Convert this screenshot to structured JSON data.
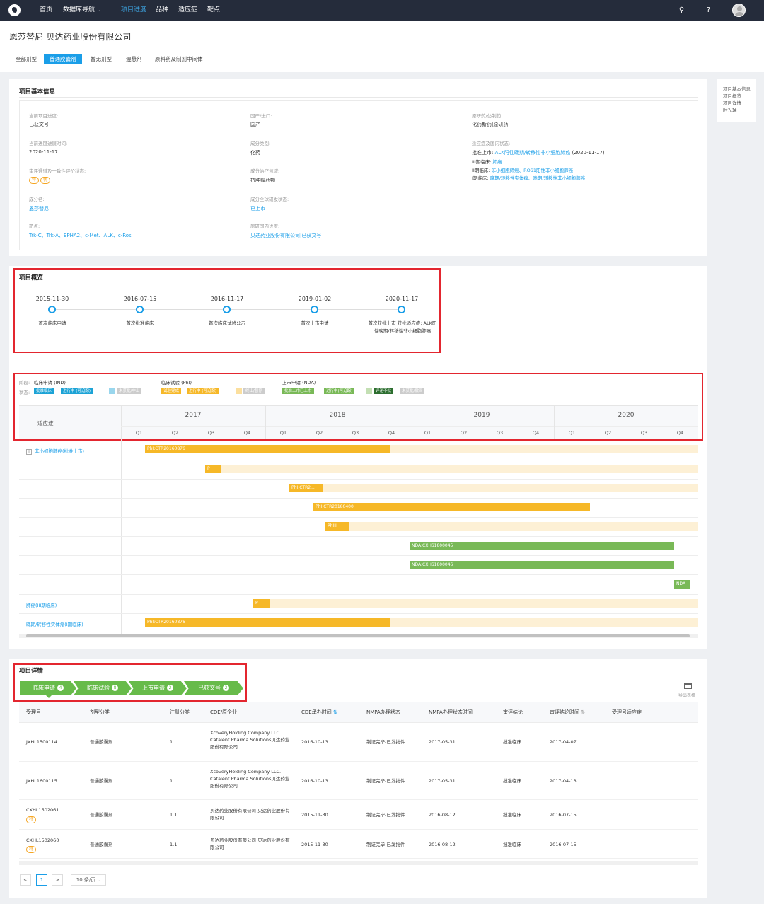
{
  "nav": {
    "items": [
      "首页",
      "数据库导航",
      "项目进度",
      "品种",
      "适应症",
      "靶点"
    ],
    "active": "项目进度"
  },
  "header": {
    "company": "恩莎替尼-贝达药业股份有限公司",
    "tabs": [
      "全部剂型",
      "普通胶囊剂",
      "暂无剂型",
      "混悬剂",
      "原料药及制剂中间体"
    ],
    "active_tab": "普通胶囊剂"
  },
  "sidebar": [
    "项目基本信息",
    "项目概览",
    "项目详情",
    "时光轴"
  ],
  "basic": {
    "title": "项目基本信息",
    "current_progress_label": "当前项目进度:",
    "current_progress": "已获文号",
    "latest_time_label": "当前进度进展时间:",
    "latest_time": "2020-11-17",
    "review_label": "审评通道及一致性评价状态:",
    "review_badges": [
      "特",
      "优"
    ],
    "component_label": "成分名:",
    "component": "恩莎替尼",
    "target_label": "靶点:",
    "targets": "Trk-C、Trk-A、EPHA2、c-Met、ALK、c-Ros",
    "origin_label": "国产/进口:",
    "origin": "国产",
    "category_label": "成分类别:",
    "category": "化药",
    "therapy_label": "成分治疗领域:",
    "therapy": "抗肿瘤药物",
    "global_label": "成分全球研发状态:",
    "global": "已上市",
    "domestic_label": "原研国内进度:",
    "domestic": "贝达药业股份有限公司|已获文号",
    "original_label": "原研药/仿制药:",
    "original": "化药新药|原研药",
    "indications_label": "适应症及国内状态:",
    "ind_line1_prefix": "批准上市:",
    "ind_line1_link": "ALK阳性晚期/转移性非小细胞肺癌",
    "ind_line1_suffix": "(2020-11-17)",
    "ind_line2_prefix": "III期临床:",
    "ind_line2_link": "肺癌",
    "ind_line3_prefix": "II期临床:",
    "ind_line3_link": "非小细胞肺癌、ROS1阳性非小细胞肺癌",
    "ind_line4_prefix": "I期临床:",
    "ind_line4_link": "晚期/转移性实体瘤、晚期/转移性非小细胞肺癌"
  },
  "overview": {
    "title": "项目概览",
    "milestones": [
      {
        "date": "2015-11-30",
        "label": "首次临床申请"
      },
      {
        "date": "2016-07-15",
        "label": "首次批准临床"
      },
      {
        "date": "2016-11-17",
        "label": "首次临床试验公示"
      },
      {
        "date": "2019-01-02",
        "label": "首次上市申请"
      },
      {
        "date": "2020-11-17",
        "label": "首次获批上市 获批适应症: ALK阳性晚期/转移性非小细胞肺癌"
      }
    ]
  },
  "legend": {
    "stage_label": "阶段:",
    "status_label": "状态:",
    "stages": [
      "临床申请 (IND)",
      "临床试验 (PhI)",
      "上市申请 (NDA)"
    ],
    "chips_ind": [
      "批准临床",
      "进行中 (可追踪)",
      "",
      "未获批/中止"
    ],
    "chips_ph": [
      "试验完成",
      "进行中 (可追踪)",
      "",
      "终止/暂停"
    ],
    "chips_nda": [
      "批准上市已上市",
      "进行中(可追踪)",
      "评论不批",
      "未获批/撤回"
    ],
    "colors": {
      "ind": "#1ca3d6",
      "ph": "#f6b828",
      "nda": "#79b957",
      "grey": "#cccccc",
      "dark": "#2c6e2f"
    }
  },
  "gantt": {
    "header_label": "适应症",
    "years": [
      "2017",
      "2018",
      "2019",
      "2020"
    ],
    "quarters": [
      "Q1",
      "Q2",
      "Q3",
      "Q4"
    ],
    "rows": [
      {
        "label": "非小细胞肺癌(批准上市)",
        "bar": "PhI:CTR20160876"
      },
      {
        "label": "",
        "bar": "P"
      },
      {
        "label": "",
        "bar": "PhI:CTR2..."
      },
      {
        "label": "",
        "bar": "PhI:CTR20180400"
      },
      {
        "label": "",
        "bar": "PhIII"
      },
      {
        "label": "",
        "bar": "NDA:CXHS1800045"
      },
      {
        "label": "",
        "bar": "NDA:CXHS1800046"
      },
      {
        "label": "",
        "bar": "NDA"
      },
      {
        "label": "肺癌(III期临床)",
        "bar": "P"
      },
      {
        "label": "晚期/转移性实体瘤(I期临床)",
        "bar": "PhI:CTR20160876"
      }
    ]
  },
  "details": {
    "title": "项目详情",
    "steps": [
      {
        "label": "临床申请",
        "count": "4"
      },
      {
        "label": "临床试验",
        "count": "8"
      },
      {
        "label": "上市申请",
        "count": "2"
      },
      {
        "label": "已获文号",
        "count": "2"
      }
    ],
    "export_label": "导出表格",
    "columns": [
      "受理号",
      "剂型分类",
      "注册分类",
      "CDE/原企业",
      "CDE承办时间",
      "NMPA办理状态",
      "NMPA办理状态时间",
      "审评结论",
      "审评结论时间",
      "受理号适应症"
    ],
    "rows": [
      {
        "id": "JXHL1500114",
        "badge": "",
        "form": "普通胶囊剂",
        "cls": "1",
        "company": "XcoveryHolding Company LLC. Catalent Pharma Solutions贝达药业股份有限公司",
        "cde_time": "2016-10-13",
        "nmpa": "制证完毕-已发批件",
        "nmpa_time": "2017-05-31",
        "conclusion": "批准临床",
        "concl_time": "2017-04-07"
      },
      {
        "id": "JXHL1600115",
        "badge": "",
        "form": "普通胶囊剂",
        "cls": "1",
        "company": "XcoveryHolding Company LLC. Catalent Pharma Solutions贝达药业股份有限公司",
        "cde_time": "2016-10-13",
        "nmpa": "制证完毕-已发批件",
        "nmpa_time": "2017-05-31",
        "conclusion": "批准临床",
        "concl_time": "2017-04-13"
      },
      {
        "id": "CXHL1502061",
        "badge": "特",
        "form": "普通胶囊剂",
        "cls": "1.1",
        "company": "贝达药业股份有限公司 贝达药业股份有限公司",
        "cde_time": "2015-11-30",
        "nmpa": "制证完毕-已发批件",
        "nmpa_time": "2016-08-12",
        "conclusion": "批准临床",
        "concl_time": "2016-07-15"
      },
      {
        "id": "CXHL1502060",
        "badge": "特",
        "form": "普通胶囊剂",
        "cls": "1.1",
        "company": "贝达药业股份有限公司 贝达药业股份有限公司",
        "cde_time": "2015-11-30",
        "nmpa": "制证完毕-已发批件",
        "nmpa_time": "2016-08-12",
        "conclusion": "批准临床",
        "concl_time": "2016-07-15"
      }
    ],
    "pager": {
      "prev": "<",
      "page": "1",
      "next": ">",
      "size": "10 条/页"
    }
  }
}
